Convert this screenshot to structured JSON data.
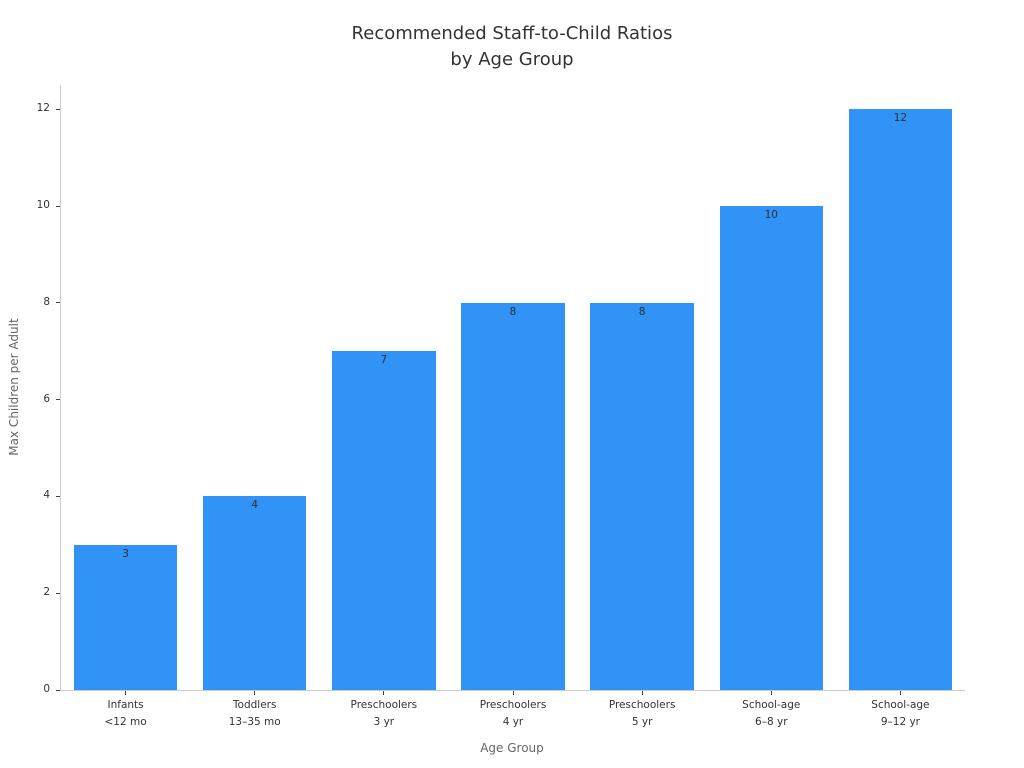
{
  "chart_data": {
    "type": "bar",
    "title": "Recommended Staff-to-Child Ratios\nby Age Group",
    "xlabel": "Age Group",
    "ylabel": "Max Children per Adult",
    "categories": [
      {
        "label": "Infants",
        "sub": "<12 mo"
      },
      {
        "label": "Toddlers",
        "sub": "13–35 mo"
      },
      {
        "label": "Preschoolers",
        "sub": "3 yr"
      },
      {
        "label": "Preschoolers",
        "sub": "4 yr"
      },
      {
        "label": "Preschoolers",
        "sub": "5 yr"
      },
      {
        "label": "School-age",
        "sub": "6–8 yr"
      },
      {
        "label": "School-age",
        "sub": "9–12 yr"
      }
    ],
    "values": [
      3,
      4,
      7,
      8,
      8,
      10,
      12
    ],
    "value_labels": [
      "3",
      "4",
      "7",
      "8",
      "8",
      "10",
      "12"
    ],
    "yticks": [
      0,
      2,
      4,
      6,
      8,
      10,
      12
    ],
    "ylim": [
      0,
      12.5
    ],
    "bar_color": "#3093f5",
    "grid": false,
    "legend_position": "none"
  }
}
